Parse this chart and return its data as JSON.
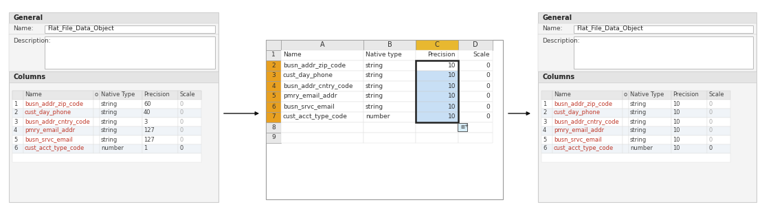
{
  "panel1": {
    "rows": [
      [
        "1",
        "busn_addr_zip_code",
        "string",
        "60",
        "0"
      ],
      [
        "2",
        "cust_day_phone",
        "string",
        "40",
        "0"
      ],
      [
        "3",
        "busn_addr_cntry_code",
        "string",
        "3",
        "0"
      ],
      [
        "4",
        "pmry_email_addr",
        "string",
        "127",
        "0"
      ],
      [
        "5",
        "busn_srvc_email",
        "string",
        "127",
        "0"
      ],
      [
        "6",
        "cust_acct_type_code",
        "number",
        "1",
        "0"
      ]
    ]
  },
  "panel2": {
    "rows": [
      [
        "1",
        "Name",
        "Native type",
        "Precision",
        "Scale"
      ],
      [
        "2",
        "busn_addr_zip_code",
        "string",
        "10",
        "0"
      ],
      [
        "3",
        "cust_day_phone",
        "string",
        "10",
        "0"
      ],
      [
        "4",
        "busn_addr_cntry_code",
        "string",
        "10",
        "0"
      ],
      [
        "5",
        "pmry_email_addr",
        "string",
        "10",
        "0"
      ],
      [
        "6",
        "busn_srvc_email",
        "string",
        "10",
        "0"
      ],
      [
        "7",
        "cust_acct_type_code",
        "number",
        "10",
        "0"
      ],
      [
        "8",
        "",
        "",
        "",
        ""
      ],
      [
        "9",
        "",
        "",
        "",
        ""
      ]
    ]
  },
  "panel3": {
    "rows": [
      [
        "1",
        "busn_addr_zip_code",
        "string",
        "10",
        "0"
      ],
      [
        "2",
        "cust_day_phone",
        "string",
        "10",
        "0"
      ],
      [
        "3",
        "busn_addr_cntry_code",
        "string",
        "10",
        "0"
      ],
      [
        "4",
        "pmry_email_addr",
        "string",
        "10",
        "0"
      ],
      [
        "5",
        "busn_srvc_email",
        "string",
        "10",
        "0"
      ],
      [
        "6",
        "cust_acct_type_code",
        "number",
        "10",
        "0"
      ]
    ]
  },
  "bg_color": "#ffffff",
  "panel_outer_bg": "#f4f4f4",
  "section_hdr_bg": "#e4e4e4",
  "name_input_bg": "#ffffff",
  "desc_input_bg": "#ffffff",
  "tbl_hdr_bg": "#e8e8e8",
  "tbl_row_even": "#ffffff",
  "tbl_row_odd": "#f0f4f8",
  "scale_color": "#aaaaaa",
  "name_col_color": "#c0392b",
  "excel_row_hdr_bg": "#e8e8e8",
  "excel_col_hdr_bg": "#e8e8e8",
  "excel_col_c_hdr_bg": "#e8b830",
  "excel_row_highlight_bg": "#e8a020",
  "excel_c_row2_bg": "#ffffff",
  "excel_c_rows_bg": "#c8dff5",
  "excel_cell_bg": "#ffffff",
  "arrow_color": "#111111",
  "border_color": "#bbbbbb",
  "text_dark": "#222222",
  "text_mid": "#444444"
}
